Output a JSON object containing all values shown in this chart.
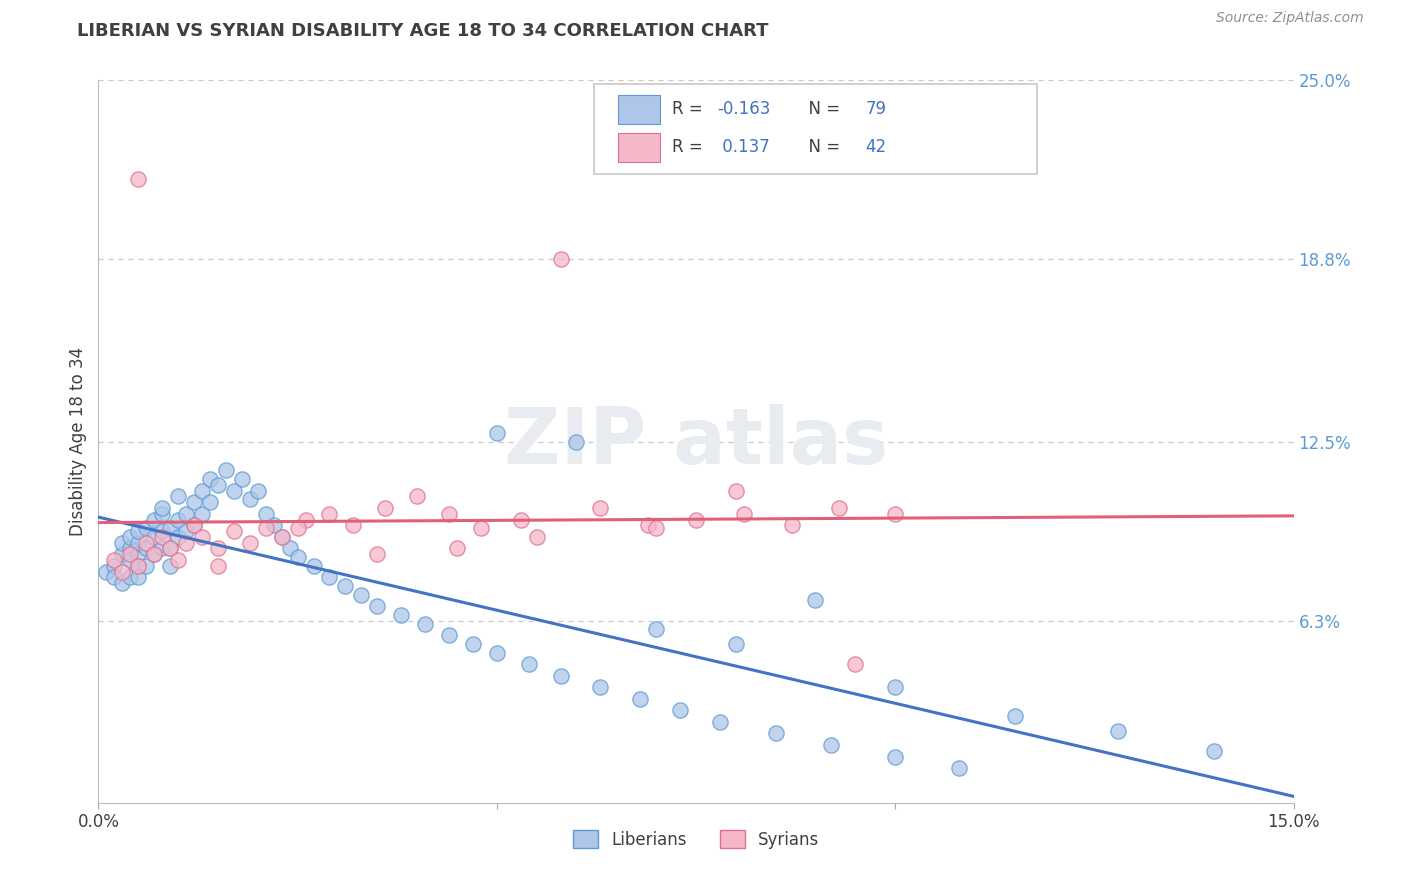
{
  "title": "LIBERIAN VS SYRIAN DISABILITY AGE 18 TO 34 CORRELATION CHART",
  "ylabel": "Disability Age 18 to 34",
  "source": "Source: ZipAtlas.com",
  "xlim": [
    0.0,
    0.15
  ],
  "ylim": [
    0.0,
    0.25
  ],
  "liberian_R": -0.163,
  "liberian_N": 79,
  "syrian_R": 0.137,
  "syrian_N": 42,
  "blue_face": "#aec6e8",
  "blue_edge": "#5b9bd5",
  "pink_face": "#f4b8c8",
  "pink_edge": "#e07090",
  "blue_line": "#4472c4",
  "pink_line": "#e0607a",
  "grid_color": "#c8c8c8",
  "right_tick_color": "#5b9bd5",
  "text_color": "#404040",
  "source_color": "#909090",
  "lib_x": [
    0.001,
    0.002,
    0.002,
    0.003,
    0.003,
    0.003,
    0.004,
    0.004,
    0.004,
    0.004,
    0.005,
    0.005,
    0.005,
    0.005,
    0.005,
    0.006,
    0.006,
    0.006,
    0.007,
    0.007,
    0.007,
    0.008,
    0.008,
    0.008,
    0.008,
    0.009,
    0.009,
    0.009,
    0.01,
    0.01,
    0.01,
    0.011,
    0.011,
    0.012,
    0.012,
    0.013,
    0.013,
    0.014,
    0.014,
    0.015,
    0.016,
    0.017,
    0.018,
    0.019,
    0.02,
    0.021,
    0.022,
    0.023,
    0.024,
    0.025,
    0.027,
    0.029,
    0.031,
    0.033,
    0.035,
    0.038,
    0.041,
    0.044,
    0.047,
    0.05,
    0.054,
    0.058,
    0.063,
    0.068,
    0.073,
    0.078,
    0.085,
    0.092,
    0.1,
    0.108,
    0.05,
    0.07,
    0.08,
    0.09,
    0.06,
    0.1,
    0.115,
    0.128,
    0.14
  ],
  "lib_y": [
    0.08,
    0.082,
    0.078,
    0.086,
    0.09,
    0.076,
    0.088,
    0.084,
    0.092,
    0.078,
    0.086,
    0.09,
    0.082,
    0.094,
    0.078,
    0.095,
    0.088,
    0.082,
    0.098,
    0.092,
    0.086,
    0.1,
    0.094,
    0.088,
    0.102,
    0.095,
    0.088,
    0.082,
    0.098,
    0.092,
    0.106,
    0.1,
    0.094,
    0.104,
    0.096,
    0.108,
    0.1,
    0.112,
    0.104,
    0.11,
    0.115,
    0.108,
    0.112,
    0.105,
    0.108,
    0.1,
    0.096,
    0.092,
    0.088,
    0.085,
    0.082,
    0.078,
    0.075,
    0.072,
    0.068,
    0.065,
    0.062,
    0.058,
    0.055,
    0.052,
    0.048,
    0.044,
    0.04,
    0.036,
    0.032,
    0.028,
    0.024,
    0.02,
    0.016,
    0.012,
    0.128,
    0.06,
    0.055,
    0.07,
    0.125,
    0.04,
    0.03,
    0.025,
    0.018
  ],
  "syr_x": [
    0.002,
    0.003,
    0.004,
    0.005,
    0.005,
    0.006,
    0.007,
    0.008,
    0.009,
    0.01,
    0.011,
    0.012,
    0.013,
    0.015,
    0.017,
    0.019,
    0.021,
    0.023,
    0.026,
    0.029,
    0.032,
    0.036,
    0.04,
    0.044,
    0.048,
    0.053,
    0.058,
    0.063,
    0.069,
    0.075,
    0.081,
    0.087,
    0.093,
    0.1,
    0.07,
    0.08,
    0.055,
    0.045,
    0.035,
    0.025,
    0.015,
    0.095
  ],
  "syr_y": [
    0.084,
    0.08,
    0.086,
    0.082,
    0.216,
    0.09,
    0.086,
    0.092,
    0.088,
    0.084,
    0.09,
    0.096,
    0.092,
    0.088,
    0.094,
    0.09,
    0.095,
    0.092,
    0.098,
    0.1,
    0.096,
    0.102,
    0.106,
    0.1,
    0.095,
    0.098,
    0.188,
    0.102,
    0.096,
    0.098,
    0.1,
    0.096,
    0.102,
    0.1,
    0.095,
    0.108,
    0.092,
    0.088,
    0.086,
    0.095,
    0.082,
    0.048
  ]
}
